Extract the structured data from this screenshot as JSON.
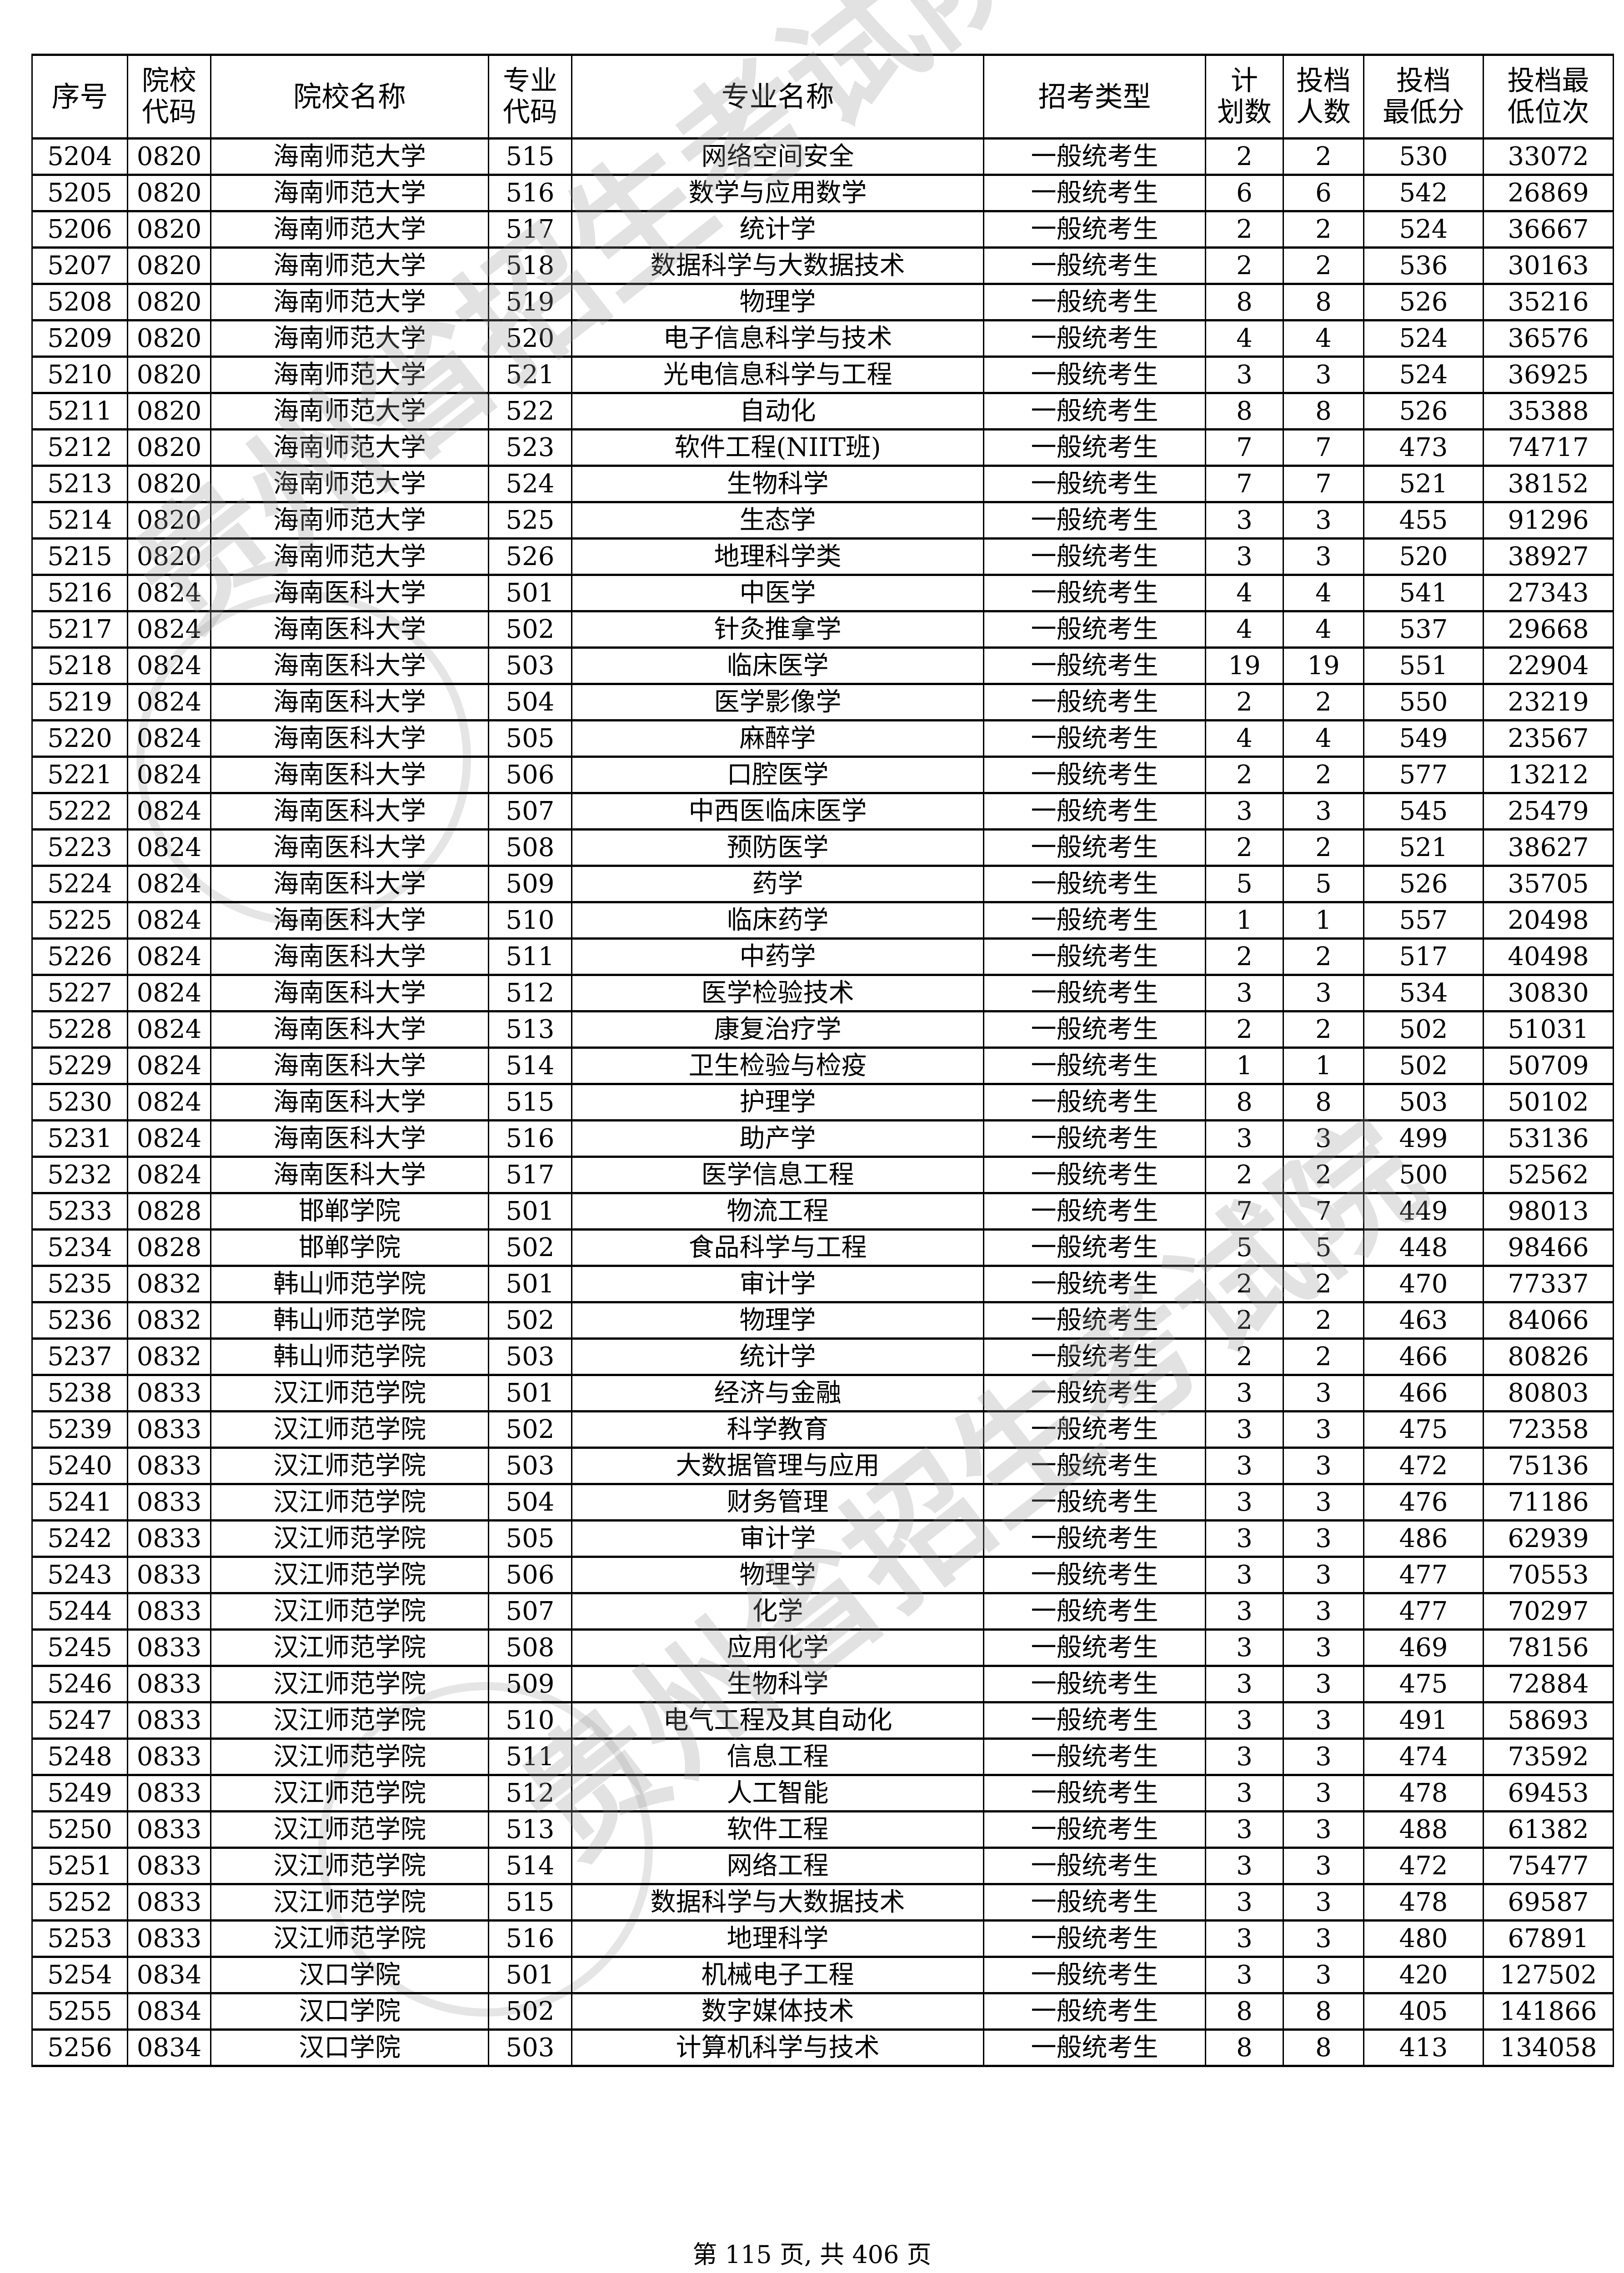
{
  "watermark": "贵州省招生考试院",
  "table": {
    "headers": [
      {
        "l1": "序号",
        "l2": ""
      },
      {
        "l1": "院校",
        "l2": "代码"
      },
      {
        "l1": "院校名称",
        "l2": ""
      },
      {
        "l1": "专业",
        "l2": "代码"
      },
      {
        "l1": "专业名称",
        "l2": ""
      },
      {
        "l1": "招考类型",
        "l2": ""
      },
      {
        "l1": "计",
        "l2": "划数"
      },
      {
        "l1": "投档",
        "l2": "人数"
      },
      {
        "l1": "投档",
        "l2": "最低分"
      },
      {
        "l1": "投档最",
        "l2": "低位次"
      }
    ],
    "rows": [
      [
        "5204",
        "0820",
        "海南师范大学",
        "515",
        "网络空间安全",
        "一般统考生",
        "2",
        "2",
        "530",
        "33072"
      ],
      [
        "5205",
        "0820",
        "海南师范大学",
        "516",
        "数学与应用数学",
        "一般统考生",
        "6",
        "6",
        "542",
        "26869"
      ],
      [
        "5206",
        "0820",
        "海南师范大学",
        "517",
        "统计学",
        "一般统考生",
        "2",
        "2",
        "524",
        "36667"
      ],
      [
        "5207",
        "0820",
        "海南师范大学",
        "518",
        "数据科学与大数据技术",
        "一般统考生",
        "2",
        "2",
        "536",
        "30163"
      ],
      [
        "5208",
        "0820",
        "海南师范大学",
        "519",
        "物理学",
        "一般统考生",
        "8",
        "8",
        "526",
        "35216"
      ],
      [
        "5209",
        "0820",
        "海南师范大学",
        "520",
        "电子信息科学与技术",
        "一般统考生",
        "4",
        "4",
        "524",
        "36576"
      ],
      [
        "5210",
        "0820",
        "海南师范大学",
        "521",
        "光电信息科学与工程",
        "一般统考生",
        "3",
        "3",
        "524",
        "36925"
      ],
      [
        "5211",
        "0820",
        "海南师范大学",
        "522",
        "自动化",
        "一般统考生",
        "8",
        "8",
        "526",
        "35388"
      ],
      [
        "5212",
        "0820",
        "海南师范大学",
        "523",
        "软件工程(NIIT班)",
        "一般统考生",
        "7",
        "7",
        "473",
        "74717"
      ],
      [
        "5213",
        "0820",
        "海南师范大学",
        "524",
        "生物科学",
        "一般统考生",
        "7",
        "7",
        "521",
        "38152"
      ],
      [
        "5214",
        "0820",
        "海南师范大学",
        "525",
        "生态学",
        "一般统考生",
        "3",
        "3",
        "455",
        "91296"
      ],
      [
        "5215",
        "0820",
        "海南师范大学",
        "526",
        "地理科学类",
        "一般统考生",
        "3",
        "3",
        "520",
        "38927"
      ],
      [
        "5216",
        "0824",
        "海南医科大学",
        "501",
        "中医学",
        "一般统考生",
        "4",
        "4",
        "541",
        "27343"
      ],
      [
        "5217",
        "0824",
        "海南医科大学",
        "502",
        "针灸推拿学",
        "一般统考生",
        "4",
        "4",
        "537",
        "29668"
      ],
      [
        "5218",
        "0824",
        "海南医科大学",
        "503",
        "临床医学",
        "一般统考生",
        "19",
        "19",
        "551",
        "22904"
      ],
      [
        "5219",
        "0824",
        "海南医科大学",
        "504",
        "医学影像学",
        "一般统考生",
        "2",
        "2",
        "550",
        "23219"
      ],
      [
        "5220",
        "0824",
        "海南医科大学",
        "505",
        "麻醉学",
        "一般统考生",
        "4",
        "4",
        "549",
        "23567"
      ],
      [
        "5221",
        "0824",
        "海南医科大学",
        "506",
        "口腔医学",
        "一般统考生",
        "2",
        "2",
        "577",
        "13212"
      ],
      [
        "5222",
        "0824",
        "海南医科大学",
        "507",
        "中西医临床医学",
        "一般统考生",
        "3",
        "3",
        "545",
        "25479"
      ],
      [
        "5223",
        "0824",
        "海南医科大学",
        "508",
        "预防医学",
        "一般统考生",
        "2",
        "2",
        "521",
        "38627"
      ],
      [
        "5224",
        "0824",
        "海南医科大学",
        "509",
        "药学",
        "一般统考生",
        "5",
        "5",
        "526",
        "35705"
      ],
      [
        "5225",
        "0824",
        "海南医科大学",
        "510",
        "临床药学",
        "一般统考生",
        "1",
        "1",
        "557",
        "20498"
      ],
      [
        "5226",
        "0824",
        "海南医科大学",
        "511",
        "中药学",
        "一般统考生",
        "2",
        "2",
        "517",
        "40498"
      ],
      [
        "5227",
        "0824",
        "海南医科大学",
        "512",
        "医学检验技术",
        "一般统考生",
        "3",
        "3",
        "534",
        "30830"
      ],
      [
        "5228",
        "0824",
        "海南医科大学",
        "513",
        "康复治疗学",
        "一般统考生",
        "2",
        "2",
        "502",
        "51031"
      ],
      [
        "5229",
        "0824",
        "海南医科大学",
        "514",
        "卫生检验与检疫",
        "一般统考生",
        "1",
        "1",
        "502",
        "50709"
      ],
      [
        "5230",
        "0824",
        "海南医科大学",
        "515",
        "护理学",
        "一般统考生",
        "8",
        "8",
        "503",
        "50102"
      ],
      [
        "5231",
        "0824",
        "海南医科大学",
        "516",
        "助产学",
        "一般统考生",
        "3",
        "3",
        "499",
        "53136"
      ],
      [
        "5232",
        "0824",
        "海南医科大学",
        "517",
        "医学信息工程",
        "一般统考生",
        "2",
        "2",
        "500",
        "52562"
      ],
      [
        "5233",
        "0828",
        "邯郸学院",
        "501",
        "物流工程",
        "一般统考生",
        "7",
        "7",
        "449",
        "98013"
      ],
      [
        "5234",
        "0828",
        "邯郸学院",
        "502",
        "食品科学与工程",
        "一般统考生",
        "5",
        "5",
        "448",
        "98466"
      ],
      [
        "5235",
        "0832",
        "韩山师范学院",
        "501",
        "审计学",
        "一般统考生",
        "2",
        "2",
        "470",
        "77337"
      ],
      [
        "5236",
        "0832",
        "韩山师范学院",
        "502",
        "物理学",
        "一般统考生",
        "2",
        "2",
        "463",
        "84066"
      ],
      [
        "5237",
        "0832",
        "韩山师范学院",
        "503",
        "统计学",
        "一般统考生",
        "2",
        "2",
        "466",
        "80826"
      ],
      [
        "5238",
        "0833",
        "汉江师范学院",
        "501",
        "经济与金融",
        "一般统考生",
        "3",
        "3",
        "466",
        "80803"
      ],
      [
        "5239",
        "0833",
        "汉江师范学院",
        "502",
        "科学教育",
        "一般统考生",
        "3",
        "3",
        "475",
        "72358"
      ],
      [
        "5240",
        "0833",
        "汉江师范学院",
        "503",
        "大数据管理与应用",
        "一般统考生",
        "3",
        "3",
        "472",
        "75136"
      ],
      [
        "5241",
        "0833",
        "汉江师范学院",
        "504",
        "财务管理",
        "一般统考生",
        "3",
        "3",
        "476",
        "71186"
      ],
      [
        "5242",
        "0833",
        "汉江师范学院",
        "505",
        "审计学",
        "一般统考生",
        "3",
        "3",
        "486",
        "62939"
      ],
      [
        "5243",
        "0833",
        "汉江师范学院",
        "506",
        "物理学",
        "一般统考生",
        "3",
        "3",
        "477",
        "70553"
      ],
      [
        "5244",
        "0833",
        "汉江师范学院",
        "507",
        "化学",
        "一般统考生",
        "3",
        "3",
        "477",
        "70297"
      ],
      [
        "5245",
        "0833",
        "汉江师范学院",
        "508",
        "应用化学",
        "一般统考生",
        "3",
        "3",
        "469",
        "78156"
      ],
      [
        "5246",
        "0833",
        "汉江师范学院",
        "509",
        "生物科学",
        "一般统考生",
        "3",
        "3",
        "475",
        "72884"
      ],
      [
        "5247",
        "0833",
        "汉江师范学院",
        "510",
        "电气工程及其自动化",
        "一般统考生",
        "3",
        "3",
        "491",
        "58693"
      ],
      [
        "5248",
        "0833",
        "汉江师范学院",
        "511",
        "信息工程",
        "一般统考生",
        "3",
        "3",
        "474",
        "73592"
      ],
      [
        "5249",
        "0833",
        "汉江师范学院",
        "512",
        "人工智能",
        "一般统考生",
        "3",
        "3",
        "478",
        "69453"
      ],
      [
        "5250",
        "0833",
        "汉江师范学院",
        "513",
        "软件工程",
        "一般统考生",
        "3",
        "3",
        "488",
        "61382"
      ],
      [
        "5251",
        "0833",
        "汉江师范学院",
        "514",
        "网络工程",
        "一般统考生",
        "3",
        "3",
        "472",
        "75477"
      ],
      [
        "5252",
        "0833",
        "汉江师范学院",
        "515",
        "数据科学与大数据技术",
        "一般统考生",
        "3",
        "3",
        "478",
        "69587"
      ],
      [
        "5253",
        "0833",
        "汉江师范学院",
        "516",
        "地理科学",
        "一般统考生",
        "3",
        "3",
        "480",
        "67891"
      ],
      [
        "5254",
        "0834",
        "汉口学院",
        "501",
        "机械电子工程",
        "一般统考生",
        "3",
        "3",
        "420",
        "127502"
      ],
      [
        "5255",
        "0834",
        "汉口学院",
        "502",
        "数字媒体技术",
        "一般统考生",
        "8",
        "8",
        "405",
        "141866"
      ],
      [
        "5256",
        "0834",
        "汉口学院",
        "503",
        "计算机科学与技术",
        "一般统考生",
        "8",
        "8",
        "413",
        "134058"
      ]
    ]
  },
  "footer": "第 115 页, 共 406 页"
}
